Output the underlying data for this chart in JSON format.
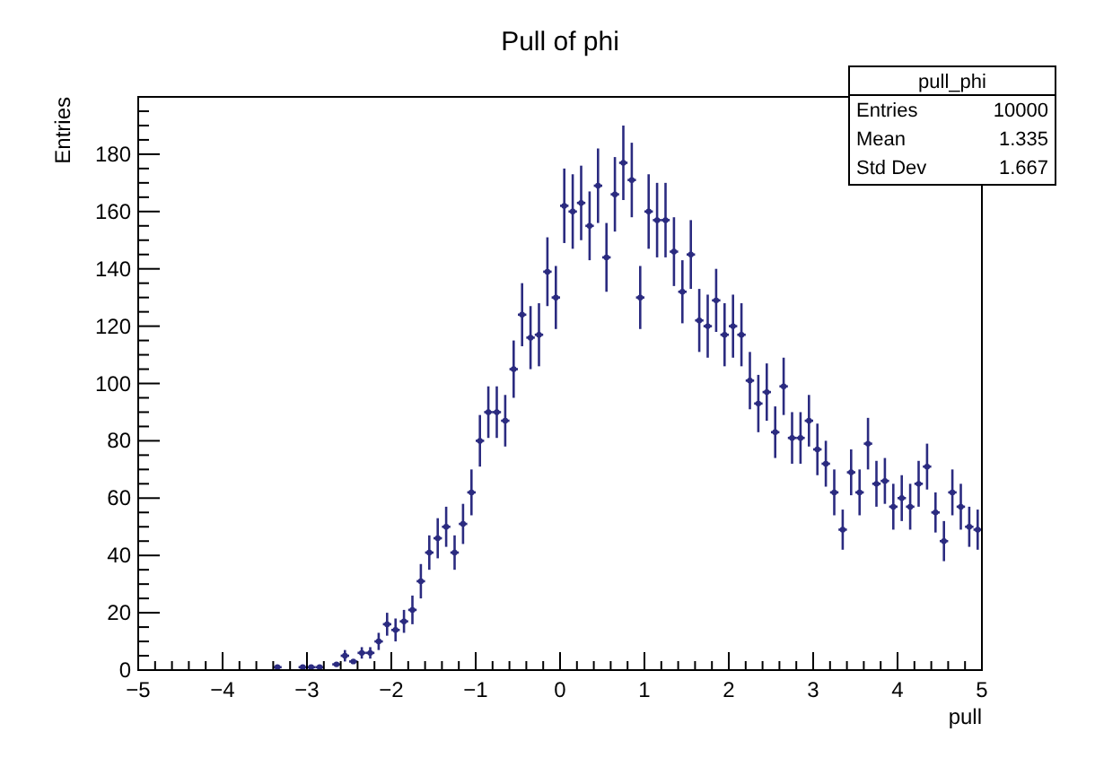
{
  "chart_data": {
    "type": "scatter",
    "title": "Pull of phi",
    "xlabel": "pull",
    "ylabel": "Entries",
    "x": [
      -3.35,
      -3.05,
      -2.95,
      -2.85,
      -2.65,
      -2.55,
      -2.45,
      -2.35,
      -2.25,
      -2.15,
      -2.05,
      -1.95,
      -1.85,
      -1.75,
      -1.65,
      -1.55,
      -1.45,
      -1.35,
      -1.25,
      -1.15,
      -1.05,
      -0.95,
      -0.85,
      -0.75,
      -0.65,
      -0.55,
      -0.45,
      -0.35,
      -0.25,
      -0.15,
      -0.05,
      0.05,
      0.15,
      0.25,
      0.35,
      0.45,
      0.55,
      0.65,
      0.75,
      0.85,
      0.95,
      1.05,
      1.15,
      1.25,
      1.35,
      1.45,
      1.55,
      1.65,
      1.75,
      1.85,
      1.95,
      2.05,
      2.15,
      2.25,
      2.35,
      2.45,
      2.55,
      2.65,
      2.75,
      2.85,
      2.95,
      3.05,
      3.15,
      3.25,
      3.35,
      3.45,
      3.55,
      3.65,
      3.75,
      3.85,
      3.95,
      4.05,
      4.15,
      4.25,
      4.35,
      4.45,
      4.55,
      4.65,
      4.75,
      4.85,
      4.95
    ],
    "values": [
      1,
      1,
      1,
      1,
      2,
      5,
      3,
      6,
      6,
      10,
      16,
      14,
      17,
      21,
      31,
      41,
      46,
      50,
      41,
      51,
      62,
      80,
      90,
      90,
      87,
      105,
      124,
      116,
      117,
      139,
      130,
      162,
      160,
      163,
      155,
      169,
      144,
      166,
      177,
      171,
      130,
      160,
      157,
      157,
      146,
      132,
      145,
      122,
      120,
      129,
      117,
      120,
      117,
      101,
      93,
      97,
      83,
      99,
      81,
      81,
      87,
      77,
      72,
      62,
      49,
      69,
      62,
      79,
      65,
      66,
      57,
      60,
      57,
      65,
      71,
      55,
      45,
      62,
      57,
      50,
      49
    ],
    "errors": [
      null,
      null,
      null,
      null,
      null,
      2,
      null,
      2,
      2,
      3,
      4,
      4,
      4,
      5,
      6,
      6,
      7,
      7,
      6,
      7,
      8,
      9,
      9,
      9,
      9,
      10,
      11,
      11,
      11,
      12,
      11,
      13,
      13,
      13,
      12,
      13,
      12,
      13,
      13,
      13,
      11,
      13,
      13,
      13,
      12,
      11,
      12,
      11,
      11,
      11,
      11,
      11,
      11,
      10,
      10,
      10,
      9,
      10,
      9,
      9,
      9,
      9,
      8,
      8,
      7,
      8,
      8,
      9,
      8,
      8,
      8,
      8,
      8,
      8,
      8,
      7,
      7,
      8,
      8,
      7,
      7
    ],
    "xerrors": [
      0.05,
      0.05,
      0.05,
      0.05,
      0.05,
      0.05,
      0.05,
      0.05,
      0.05,
      0.05,
      0.05,
      0.05,
      0.05,
      0.05,
      0.05,
      0.05,
      0.05,
      0.05,
      0.05,
      0.05,
      0.05,
      0.05,
      0.05,
      0.05,
      0.05,
      0.05,
      0.05,
      0.05,
      0.05,
      0.05,
      0.05,
      0.05,
      0.05,
      0.05,
      0.05,
      0.05,
      0.05,
      0.05,
      0.05,
      0.05,
      0.05,
      0.05,
      0.05,
      0.05,
      0.05,
      0.05,
      0.05,
      0.05,
      0.05,
      0.05,
      0.05,
      0.05,
      0.05,
      0.05,
      0.05,
      0.05,
      0.05,
      0.05,
      0.05,
      0.05,
      0.05,
      0.05,
      0.05,
      0.05,
      0.05,
      0.05,
      0.05,
      0.05,
      0.05,
      0.05,
      0.05,
      0.05,
      0.05,
      0.05,
      0.05,
      0.05,
      0.05,
      0.05,
      0.05,
      0.05,
      0.05
    ],
    "color": "#2b2b80",
    "marker": "circle",
    "xlim": [
      -5,
      5
    ],
    "xticks": [
      -5,
      -4,
      -3,
      -2,
      -1,
      0,
      1,
      2,
      3,
      4,
      5
    ],
    "ylim": [
      0,
      200
    ],
    "yticks": [
      0,
      20,
      40,
      60,
      80,
      100,
      120,
      140,
      160,
      180
    ],
    "annotations": [
      "pull_phi",
      "Entries",
      "10000",
      "Mean",
      "1.335",
      "Std Dev",
      "1.667"
    ]
  }
}
